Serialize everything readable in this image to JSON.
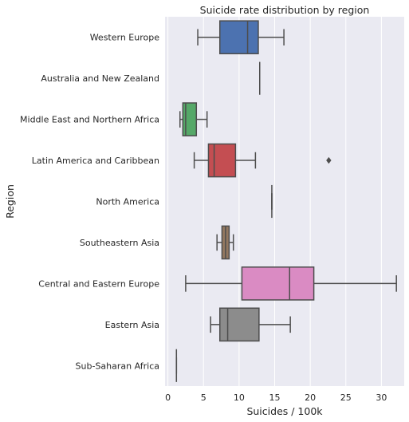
{
  "chart_data": {
    "type": "box",
    "orientation": "horizontal",
    "title": "Suicide rate distribution by region",
    "xlabel": "Suicides / 100k",
    "ylabel": "Region",
    "xlim": [
      -0.4,
      33.2
    ],
    "xticks": [
      0,
      5,
      10,
      15,
      20,
      25,
      30
    ],
    "grid": true,
    "background": "#EAEAF2",
    "grid_color": "#FFFFFF",
    "line_color": "#4D4D4D",
    "categories": [
      "Western Europe",
      "Australia and New Zealand",
      "Middle East and Northern Africa",
      "Latin America and Caribbean",
      "North America",
      "Southeastern Asia",
      "Central and Eastern Europe",
      "Eastern Asia",
      "Sub-Saharan Africa"
    ],
    "boxes": [
      {
        "category": "Western Europe",
        "whisker_low": 4.2,
        "q1": 7.3,
        "median": 11.2,
        "q3": 12.7,
        "whisker_high": 16.3,
        "outliers": [],
        "color": "#4C72B0"
      },
      {
        "category": "Australia and New Zealand",
        "whisker_low": 12.9,
        "q1": 12.9,
        "median": 12.9,
        "q3": 12.9,
        "whisker_high": 12.9,
        "outliers": [],
        "color": "#DD8452"
      },
      {
        "category": "Middle East and Northern Africa",
        "whisker_low": 1.7,
        "q1": 2.1,
        "median": 2.5,
        "q3": 4.0,
        "whisker_high": 5.5,
        "outliers": [],
        "color": "#55A868"
      },
      {
        "category": "Latin America and Caribbean",
        "whisker_low": 3.7,
        "q1": 5.7,
        "median": 6.5,
        "q3": 9.5,
        "whisker_high": 12.3,
        "outliers": [
          22.6
        ],
        "color": "#C44E52"
      },
      {
        "category": "North America",
        "whisker_low": 14.6,
        "q1": 14.6,
        "median": 14.6,
        "q3": 14.6,
        "whisker_high": 14.6,
        "outliers": [],
        "color": "#8172B3"
      },
      {
        "category": "Southeastern Asia",
        "whisker_low": 6.9,
        "q1": 7.6,
        "median": 8.1,
        "q3": 8.6,
        "whisker_high": 9.2,
        "outliers": [],
        "color": "#937860"
      },
      {
        "category": "Central and Eastern Europe",
        "whisker_low": 2.5,
        "q1": 10.4,
        "median": 17.1,
        "q3": 20.5,
        "whisker_high": 32.1,
        "outliers": [],
        "color": "#DA8BC3"
      },
      {
        "category": "Eastern Asia",
        "whisker_low": 6.0,
        "q1": 7.3,
        "median": 8.4,
        "q3": 12.8,
        "whisker_high": 17.2,
        "outliers": [],
        "color": "#8C8C8C"
      },
      {
        "category": "Sub-Saharan Africa",
        "whisker_low": 1.2,
        "q1": 1.2,
        "median": 1.2,
        "q3": 1.2,
        "whisker_high": 1.2,
        "outliers": [],
        "color": "#CCB974"
      }
    ]
  }
}
